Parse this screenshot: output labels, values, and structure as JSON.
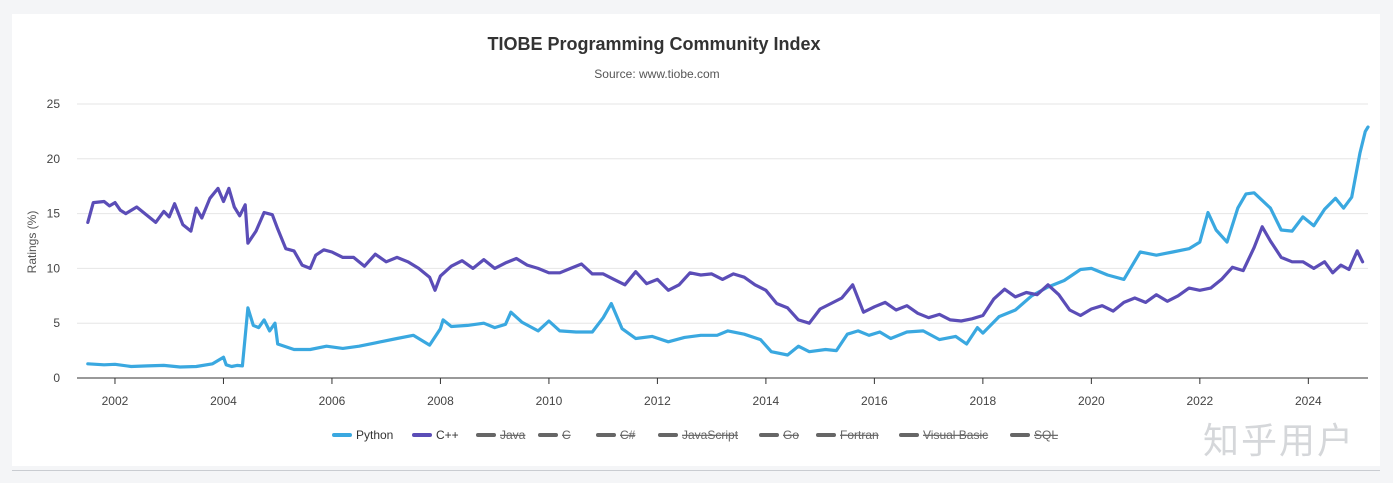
{
  "chart_data": {
    "type": "line",
    "title": "TIOBE Programming Community Index",
    "subtitle": "Source: www.tiobe.com",
    "ylabel": "Ratings (%)",
    "xlabel": "",
    "xlim": [
      2001.3,
      2025.1
    ],
    "ylim": [
      0,
      25
    ],
    "yticks": [
      0,
      5,
      10,
      15,
      20,
      25
    ],
    "xticks": [
      2002,
      2004,
      2006,
      2008,
      2010,
      2012,
      2014,
      2016,
      2018,
      2020,
      2022,
      2024
    ],
    "grid": "horizontal",
    "legend_position": "bottom",
    "series": [
      {
        "name": "Python",
        "color": "#3aa8e0",
        "visible": true,
        "points": [
          [
            2001.5,
            1.3
          ],
          [
            2001.8,
            1.2
          ],
          [
            2002.0,
            1.25
          ],
          [
            2002.3,
            1.05
          ],
          [
            2002.6,
            1.1
          ],
          [
            2002.9,
            1.15
          ],
          [
            2003.2,
            1.0
          ],
          [
            2003.5,
            1.05
          ],
          [
            2003.8,
            1.3
          ],
          [
            2004.0,
            1.9
          ],
          [
            2004.05,
            1.2
          ],
          [
            2004.15,
            1.05
          ],
          [
            2004.25,
            1.15
          ],
          [
            2004.35,
            1.1
          ],
          [
            2004.45,
            6.4
          ],
          [
            2004.55,
            4.8
          ],
          [
            2004.65,
            4.6
          ],
          [
            2004.75,
            5.3
          ],
          [
            2004.85,
            4.3
          ],
          [
            2004.95,
            5.0
          ],
          [
            2005.0,
            3.1
          ],
          [
            2005.3,
            2.6
          ],
          [
            2005.6,
            2.6
          ],
          [
            2005.9,
            2.9
          ],
          [
            2006.2,
            2.7
          ],
          [
            2006.5,
            2.9
          ],
          [
            2006.8,
            3.2
          ],
          [
            2007.2,
            3.6
          ],
          [
            2007.5,
            3.9
          ],
          [
            2007.8,
            3.0
          ],
          [
            2008.0,
            4.5
          ],
          [
            2008.05,
            5.3
          ],
          [
            2008.2,
            4.7
          ],
          [
            2008.5,
            4.8
          ],
          [
            2008.8,
            5.0
          ],
          [
            2009.0,
            4.6
          ],
          [
            2009.2,
            4.9
          ],
          [
            2009.3,
            6.0
          ],
          [
            2009.5,
            5.1
          ],
          [
            2009.8,
            4.3
          ],
          [
            2010.0,
            5.2
          ],
          [
            2010.2,
            4.3
          ],
          [
            2010.5,
            4.2
          ],
          [
            2010.8,
            4.2
          ],
          [
            2011.0,
            5.5
          ],
          [
            2011.15,
            6.8
          ],
          [
            2011.35,
            4.5
          ],
          [
            2011.6,
            3.6
          ],
          [
            2011.9,
            3.8
          ],
          [
            2012.2,
            3.3
          ],
          [
            2012.5,
            3.7
          ],
          [
            2012.8,
            3.9
          ],
          [
            2013.1,
            3.9
          ],
          [
            2013.3,
            4.3
          ],
          [
            2013.6,
            4.0
          ],
          [
            2013.9,
            3.5
          ],
          [
            2014.1,
            2.4
          ],
          [
            2014.4,
            2.1
          ],
          [
            2014.6,
            2.9
          ],
          [
            2014.8,
            2.4
          ],
          [
            2015.1,
            2.6
          ],
          [
            2015.3,
            2.5
          ],
          [
            2015.5,
            4.0
          ],
          [
            2015.7,
            4.3
          ],
          [
            2015.9,
            3.9
          ],
          [
            2016.1,
            4.2
          ],
          [
            2016.3,
            3.6
          ],
          [
            2016.6,
            4.2
          ],
          [
            2016.9,
            4.3
          ],
          [
            2017.2,
            3.5
          ],
          [
            2017.5,
            3.8
          ],
          [
            2017.7,
            3.1
          ],
          [
            2017.9,
            4.6
          ],
          [
            2018.0,
            4.1
          ],
          [
            2018.3,
            5.6
          ],
          [
            2018.6,
            6.2
          ],
          [
            2018.9,
            7.5
          ],
          [
            2019.2,
            8.3
          ],
          [
            2019.5,
            8.9
          ],
          [
            2019.8,
            9.9
          ],
          [
            2020.0,
            10.0
          ],
          [
            2020.3,
            9.4
          ],
          [
            2020.6,
            9.0
          ],
          [
            2020.9,
            11.5
          ],
          [
            2021.2,
            11.2
          ],
          [
            2021.5,
            11.5
          ],
          [
            2021.8,
            11.8
          ],
          [
            2022.0,
            12.4
          ],
          [
            2022.15,
            15.1
          ],
          [
            2022.3,
            13.5
          ],
          [
            2022.5,
            12.4
          ],
          [
            2022.7,
            15.5
          ],
          [
            2022.85,
            16.8
          ],
          [
            2023.0,
            16.9
          ],
          [
            2023.3,
            15.5
          ],
          [
            2023.5,
            13.5
          ],
          [
            2023.7,
            13.4
          ],
          [
            2023.9,
            14.7
          ],
          [
            2024.1,
            13.9
          ],
          [
            2024.3,
            15.4
          ],
          [
            2024.5,
            16.4
          ],
          [
            2024.65,
            15.5
          ],
          [
            2024.8,
            16.5
          ],
          [
            2024.95,
            20.5
          ],
          [
            2025.05,
            22.5
          ],
          [
            2025.1,
            22.9
          ]
        ]
      },
      {
        "name": "C++",
        "color": "#5b4db7",
        "visible": true,
        "points": [
          [
            2001.5,
            14.2
          ],
          [
            2001.6,
            16.0
          ],
          [
            2001.8,
            16.1
          ],
          [
            2001.9,
            15.7
          ],
          [
            2002.0,
            16.0
          ],
          [
            2002.1,
            15.3
          ],
          [
            2002.2,
            15.0
          ],
          [
            2002.4,
            15.6
          ],
          [
            2002.6,
            14.8
          ],
          [
            2002.75,
            14.2
          ],
          [
            2002.9,
            15.2
          ],
          [
            2003.0,
            14.7
          ],
          [
            2003.1,
            15.9
          ],
          [
            2003.25,
            14.0
          ],
          [
            2003.4,
            13.4
          ],
          [
            2003.5,
            15.5
          ],
          [
            2003.6,
            14.6
          ],
          [
            2003.75,
            16.4
          ],
          [
            2003.9,
            17.3
          ],
          [
            2004.0,
            16.1
          ],
          [
            2004.1,
            17.3
          ],
          [
            2004.2,
            15.6
          ],
          [
            2004.3,
            14.8
          ],
          [
            2004.4,
            15.8
          ],
          [
            2004.45,
            12.3
          ],
          [
            2004.6,
            13.4
          ],
          [
            2004.75,
            15.1
          ],
          [
            2004.9,
            14.9
          ],
          [
            2005.0,
            13.6
          ],
          [
            2005.15,
            11.8
          ],
          [
            2005.3,
            11.6
          ],
          [
            2005.45,
            10.3
          ],
          [
            2005.6,
            10.0
          ],
          [
            2005.7,
            11.2
          ],
          [
            2005.85,
            11.7
          ],
          [
            2006.0,
            11.5
          ],
          [
            2006.2,
            11.0
          ],
          [
            2006.4,
            11.0
          ],
          [
            2006.6,
            10.2
          ],
          [
            2006.8,
            11.3
          ],
          [
            2007.0,
            10.6
          ],
          [
            2007.2,
            11.0
          ],
          [
            2007.4,
            10.6
          ],
          [
            2007.6,
            10.0
          ],
          [
            2007.8,
            9.2
          ],
          [
            2007.9,
            8.0
          ],
          [
            2008.0,
            9.3
          ],
          [
            2008.2,
            10.2
          ],
          [
            2008.4,
            10.7
          ],
          [
            2008.6,
            10.0
          ],
          [
            2008.8,
            10.8
          ],
          [
            2009.0,
            10.0
          ],
          [
            2009.2,
            10.5
          ],
          [
            2009.4,
            10.9
          ],
          [
            2009.6,
            10.3
          ],
          [
            2009.8,
            10.0
          ],
          [
            2010.0,
            9.6
          ],
          [
            2010.2,
            9.6
          ],
          [
            2010.4,
            10.0
          ],
          [
            2010.6,
            10.4
          ],
          [
            2010.8,
            9.5
          ],
          [
            2011.0,
            9.5
          ],
          [
            2011.2,
            9.0
          ],
          [
            2011.4,
            8.5
          ],
          [
            2011.6,
            9.7
          ],
          [
            2011.8,
            8.6
          ],
          [
            2012.0,
            9.0
          ],
          [
            2012.2,
            8.0
          ],
          [
            2012.4,
            8.5
          ],
          [
            2012.6,
            9.6
          ],
          [
            2012.8,
            9.4
          ],
          [
            2013.0,
            9.5
          ],
          [
            2013.2,
            9.0
          ],
          [
            2013.4,
            9.5
          ],
          [
            2013.6,
            9.2
          ],
          [
            2013.8,
            8.5
          ],
          [
            2014.0,
            8.0
          ],
          [
            2014.2,
            6.8
          ],
          [
            2014.4,
            6.4
          ],
          [
            2014.6,
            5.3
          ],
          [
            2014.8,
            5.0
          ],
          [
            2015.0,
            6.3
          ],
          [
            2015.2,
            6.8
          ],
          [
            2015.4,
            7.3
          ],
          [
            2015.6,
            8.5
          ],
          [
            2015.8,
            6.0
          ],
          [
            2016.0,
            6.5
          ],
          [
            2016.2,
            6.9
          ],
          [
            2016.4,
            6.2
          ],
          [
            2016.6,
            6.6
          ],
          [
            2016.8,
            5.9
          ],
          [
            2017.0,
            5.5
          ],
          [
            2017.2,
            5.8
          ],
          [
            2017.4,
            5.3
          ],
          [
            2017.6,
            5.2
          ],
          [
            2017.8,
            5.4
          ],
          [
            2018.0,
            5.7
          ],
          [
            2018.2,
            7.2
          ],
          [
            2018.4,
            8.1
          ],
          [
            2018.6,
            7.4
          ],
          [
            2018.8,
            7.8
          ],
          [
            2019.0,
            7.6
          ],
          [
            2019.2,
            8.5
          ],
          [
            2019.4,
            7.6
          ],
          [
            2019.6,
            6.2
          ],
          [
            2019.8,
            5.7
          ],
          [
            2020.0,
            6.3
          ],
          [
            2020.2,
            6.6
          ],
          [
            2020.4,
            6.1
          ],
          [
            2020.6,
            6.9
          ],
          [
            2020.8,
            7.3
          ],
          [
            2021.0,
            6.9
          ],
          [
            2021.2,
            7.6
          ],
          [
            2021.4,
            7.0
          ],
          [
            2021.6,
            7.5
          ],
          [
            2021.8,
            8.2
          ],
          [
            2022.0,
            8.0
          ],
          [
            2022.2,
            8.2
          ],
          [
            2022.4,
            9.0
          ],
          [
            2022.6,
            10.1
          ],
          [
            2022.8,
            9.8
          ],
          [
            2023.0,
            11.9
          ],
          [
            2023.15,
            13.8
          ],
          [
            2023.3,
            12.5
          ],
          [
            2023.5,
            11.0
          ],
          [
            2023.7,
            10.6
          ],
          [
            2023.9,
            10.6
          ],
          [
            2024.1,
            10.0
          ],
          [
            2024.3,
            10.6
          ],
          [
            2024.45,
            9.6
          ],
          [
            2024.6,
            10.3
          ],
          [
            2024.75,
            9.9
          ],
          [
            2024.9,
            11.6
          ],
          [
            2025.0,
            10.6
          ]
        ]
      },
      {
        "name": "Java",
        "color": "#666666",
        "visible": false,
        "points": []
      },
      {
        "name": "C",
        "color": "#666666",
        "visible": false,
        "points": []
      },
      {
        "name": "C#",
        "color": "#666666",
        "visible": false,
        "points": []
      },
      {
        "name": "JavaScript",
        "color": "#666666",
        "visible": false,
        "points": []
      },
      {
        "name": "Go",
        "color": "#666666",
        "visible": false,
        "points": []
      },
      {
        "name": "Fortran",
        "color": "#666666",
        "visible": false,
        "points": []
      },
      {
        "name": "Visual Basic",
        "color": "#666666",
        "visible": false,
        "points": []
      },
      {
        "name": "SQL",
        "color": "#666666",
        "visible": false,
        "points": []
      }
    ]
  },
  "watermark": "知乎用户"
}
